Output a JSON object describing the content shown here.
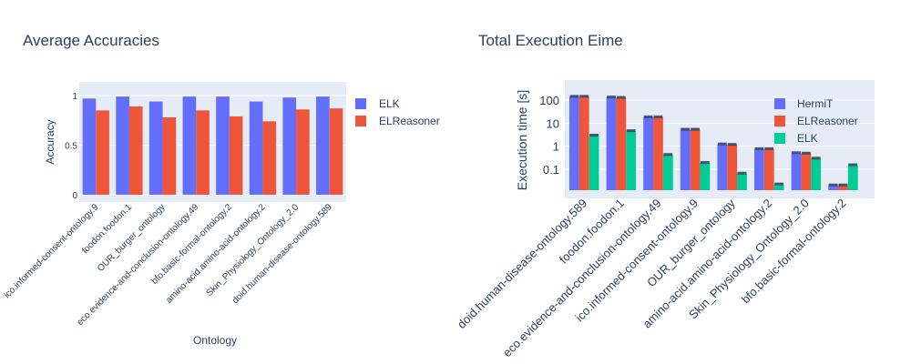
{
  "chart_data": [
    {
      "type": "bar",
      "title": "Average Accuracies",
      "xlabel": "Ontology",
      "ylabel": "Accuracy",
      "ylim": [
        0,
        1.1
      ],
      "yticks": [
        0,
        0.5,
        1
      ],
      "ytick_labels": [
        "0",
        "0.5",
        "1"
      ],
      "grid": true,
      "legend_position": "right",
      "categories": [
        "ico.informed-consent-ontology.9",
        "foodon.foodon.1",
        "OUR_burger_ontology",
        "eco.evidence-and-conclusion-ontology.49",
        "bfo.basic-formal-ontology.2",
        "amino-acid.amino-acid-ontology.2",
        "Skin_Physiology_Ontology_2.0",
        "doid.human-disease-ontology.589"
      ],
      "series": [
        {
          "name": "ELK",
          "color": "#636efa",
          "values": [
            0.97,
            0.99,
            0.94,
            0.99,
            0.99,
            0.94,
            0.98,
            0.99
          ]
        },
        {
          "name": "ELReasoner",
          "color": "#ef553b",
          "values": [
            0.85,
            0.89,
            0.78,
            0.85,
            0.79,
            0.74,
            0.86,
            0.87
          ]
        }
      ]
    },
    {
      "type": "bar",
      "title": "Total Execution Eime",
      "xlabel": "",
      "ylabel": "Execution time [s]",
      "yscale": "log",
      "ylim": [
        0.012,
        250
      ],
      "yticks": [
        0.1,
        1,
        10,
        100
      ],
      "ytick_labels": [
        "0.1",
        "1",
        "10",
        "100"
      ],
      "grid": true,
      "legend_position": "top-right",
      "error_bars": true,
      "categories": [
        "doid.human-disease-ontology.589",
        "foodon.foodon.1",
        "eco.evidence-and-conclusion-ontology.49",
        "ico.informed-consent-ontology.9",
        "OUR_burger_ontology",
        "amino-acid.amino-acid-ontology.2",
        "Skin_Physiology_Ontology_2.0",
        "bfo.basic-formal-ontology.2"
      ],
      "series": [
        {
          "name": "HermiT",
          "color": "#636efa",
          "values": [
            140,
            130,
            18,
            5.2,
            1.2,
            0.75,
            0.5,
            0.02
          ]
        },
        {
          "name": "ELReasoner",
          "color": "#ef553b",
          "values": [
            140,
            125,
            18,
            5.2,
            1.15,
            0.75,
            0.48,
            0.02
          ]
        },
        {
          "name": "ELK",
          "color": "#00cc96",
          "values": [
            2.9,
            4.5,
            0.42,
            0.19,
            0.065,
            0.022,
            0.29,
            0.15
          ]
        }
      ]
    }
  ]
}
